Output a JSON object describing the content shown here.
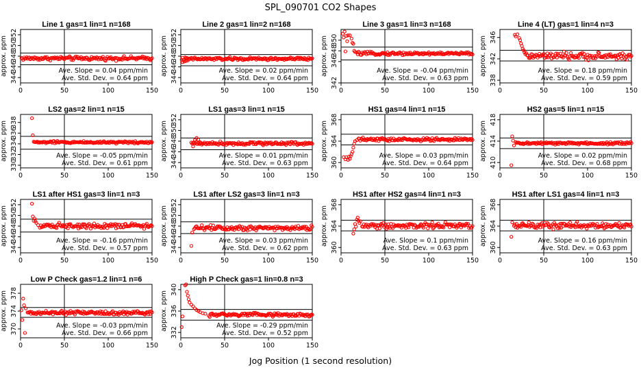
{
  "figure": {
    "title": "SPL_090701  CO2 Shapes",
    "xlabel": "Jog Position (1 second resolution)"
  },
  "chart_data": [
    {
      "type": "scatter",
      "title": "Line 1 gas=1 lin=1 n=168",
      "ylabel": "approx. ppm",
      "xlim": [
        0,
        150
      ],
      "ylim": [
        343,
        353
      ],
      "yticks": [
        344,
        346,
        348,
        350,
        352
      ],
      "xticks": [
        0,
        50,
        100,
        150
      ],
      "hlines": [
        348.6,
        346.4
      ],
      "vline": 50,
      "x_start": 1,
      "base": 347.6,
      "noise": 0.25,
      "init": [],
      "slope_text": "Ave. Slope =  0.04  ppm/min",
      "std_text": "Ave. Std. Dev. =  0.64  ppm"
    },
    {
      "type": "scatter",
      "title": "Line 2 gas=1 lin=2 n=168",
      "ylabel": "approx. ppm",
      "xlim": [
        0,
        150
      ],
      "ylim": [
        343,
        353
      ],
      "yticks": [
        344,
        346,
        348,
        350,
        352
      ],
      "xticks": [
        0,
        50,
        100,
        150
      ],
      "hlines": [
        348.3,
        346.2
      ],
      "vline": 50,
      "x_start": 1,
      "base": 347.5,
      "noise": 0.2,
      "init": [
        [
          2,
          346.9
        ],
        [
          4,
          347.0
        ],
        [
          6,
          347.1
        ],
        [
          8,
          347.2
        ]
      ],
      "slope_text": "Ave. Slope =  0.02  ppm/min",
      "std_text": "Ave. Std. Dev. =  0.64  ppm"
    },
    {
      "type": "scatter",
      "title": "Line 3 gas=1 lin=3 n=168",
      "ylabel": "approx. ppm",
      "xlim": [
        0,
        150
      ],
      "ylim": [
        342,
        352
      ],
      "yticks": [
        342,
        346,
        348,
        350
      ],
      "xticks": [
        0,
        50,
        100,
        150
      ],
      "hlines": [
        348.7,
        346.3
      ],
      "vline": 50,
      "x_start": 18,
      "base": 347.5,
      "noise": 0.2,
      "init": [
        [
          2,
          351.2
        ],
        [
          3,
          350.5
        ],
        [
          4,
          351.6
        ],
        [
          6,
          350.8
        ],
        [
          7,
          349.8
        ],
        [
          8,
          350.9
        ],
        [
          10,
          350.9
        ],
        [
          12,
          350.3
        ],
        [
          13,
          349.5
        ],
        [
          14,
          349.3
        ],
        [
          5,
          347.9
        ],
        [
          15,
          348.0
        ],
        [
          16,
          347.8
        ]
      ],
      "slope_text": "Ave. Slope =  -0.04  ppm/min",
      "std_text": "Ave. Std. Dev. =  0.63  ppm"
    },
    {
      "type": "scatter",
      "title": "Line 4 (LT) gas=1 lin=4 n=3",
      "ylabel": "approx. ppm",
      "xlim": [
        0,
        150
      ],
      "ylim": [
        337.5,
        347.5
      ],
      "yticks": [
        338,
        342,
        346
      ],
      "xticks": [
        0,
        50,
        100,
        150
      ],
      "hlines": [
        343.6,
        341.6
      ],
      "vline": 50,
      "x_start": 30,
      "base": 342.5,
      "noise": 0.45,
      "init": [
        [
          17,
          346.5
        ],
        [
          18,
          346.2
        ],
        [
          20,
          346.6
        ],
        [
          22,
          345.9
        ],
        [
          23,
          345.5
        ],
        [
          24,
          344.9
        ],
        [
          25,
          344.4
        ],
        [
          26,
          343.9
        ],
        [
          27,
          343.6
        ],
        [
          28,
          343.2
        ],
        [
          29,
          342.9
        ]
      ],
      "slope_text": "Ave. Slope =  0.18  ppm/min",
      "std_text": "Ave. Std. Dev. =  0.59  ppm"
    },
    {
      "type": "scatter",
      "title": "LS2 gas=2 lin=1 n=15",
      "ylabel": "approx. ppm",
      "xlim": [
        0,
        150
      ],
      "ylim": [
        329.5,
        339.5
      ],
      "yticks": [
        330,
        332,
        334,
        336,
        338
      ],
      "xticks": [
        0,
        50,
        100,
        150
      ],
      "hlines": [
        335.4,
        333.0
      ],
      "vline": 50,
      "x_start": 16,
      "base": 334.3,
      "noise": 0.15,
      "init": [
        [
          13,
          338.8
        ],
        [
          14,
          335.6
        ],
        [
          15,
          334.4
        ]
      ],
      "slope_text": "Ave. Slope =  -0.05  ppm/min",
      "std_text": "Ave. Std. Dev. =  0.61  ppm"
    },
    {
      "type": "scatter",
      "title": "LS1 gas=3 lin=1 n=15",
      "ylabel": "approx. ppm",
      "xlim": [
        0,
        150
      ],
      "ylim": [
        343,
        353
      ],
      "yticks": [
        344,
        346,
        348,
        350,
        352
      ],
      "xticks": [
        0,
        50,
        100,
        150
      ],
      "hlines": [
        348.6,
        346.4
      ],
      "vline": 50,
      "x_start": 12,
      "base": 347.6,
      "noise": 0.22,
      "init": [
        [
          14,
          347.0
        ],
        [
          16,
          348.2
        ],
        [
          18,
          348.6
        ],
        [
          20,
          348.3
        ],
        [
          22,
          347.8
        ]
      ],
      "slope_text": "Ave. Slope =  0.01  ppm/min",
      "std_text": "Ave. Std. Dev. =  0.63  ppm"
    },
    {
      "type": "scatter",
      "title": "HS1 gas=4 lin=1 n=15",
      "ylabel": "approx. ppm",
      "xlim": [
        0,
        150
      ],
      "ylim": [
        359,
        369
      ],
      "yticks": [
        360,
        364,
        368
      ],
      "xticks": [
        0,
        50,
        100,
        150
      ],
      "hlines": [
        365.3,
        363.3
      ],
      "vline": 50,
      "x_start": 20,
      "base": 364.3,
      "noise": 0.22,
      "init": [
        [
          3,
          361.0
        ],
        [
          5,
          360.6
        ],
        [
          6,
          361.0
        ],
        [
          8,
          360.5
        ],
        [
          9,
          361.1
        ],
        [
          10,
          360.7
        ],
        [
          11,
          361.2
        ],
        [
          12,
          361.6
        ],
        [
          13,
          362.0
        ],
        [
          14,
          362.8
        ],
        [
          15,
          363.5
        ],
        [
          16,
          364.0
        ],
        [
          18,
          364.2
        ]
      ],
      "slope_text": "Ave. Slope =  0.03  ppm/min",
      "std_text": "Ave. Std. Dev. =  0.64  ppm"
    },
    {
      "type": "scatter",
      "title": "HS2 gas=5 lin=1 n=15",
      "ylabel": "approx. ppm",
      "xlim": [
        0,
        150
      ],
      "ylim": [
        409,
        419
      ],
      "yticks": [
        410,
        414,
        418
      ],
      "xticks": [
        0,
        50,
        100,
        150
      ],
      "hlines": [
        414.6,
        412.6
      ],
      "vline": 50,
      "x_start": 18,
      "base": 413.6,
      "noise": 0.18,
      "init": [
        [
          13,
          409.5
        ],
        [
          14,
          414.9
        ],
        [
          15,
          414.1
        ],
        [
          16,
          413.2
        ]
      ],
      "slope_text": "Ave. Slope =  0.02  ppm/min",
      "std_text": "Ave. Std. Dev. =  0.68  ppm"
    },
    {
      "type": "scatter",
      "title": "LS1 after HS1 gas=3 lin=1 n=3",
      "ylabel": "approx. ppm",
      "xlim": [
        0,
        150
      ],
      "ylim": [
        343,
        353
      ],
      "yticks": [
        344,
        346,
        348,
        350,
        352
      ],
      "xticks": [
        0,
        50,
        100,
        150
      ],
      "hlines": [
        349.3,
        346.9
      ],
      "vline": 50,
      "x_start": 22,
      "base": 348.1,
      "noise": 0.35,
      "init": [
        [
          13,
          352.2
        ],
        [
          14,
          349.8
        ],
        [
          15,
          349.0
        ],
        [
          16,
          349.4
        ],
        [
          17,
          348.9
        ],
        [
          18,
          348.6
        ],
        [
          20,
          348.2
        ]
      ],
      "slope_text": "Ave. Slope =  -0.16  ppm/min",
      "std_text": "Ave. Std. Dev. =  0.57  ppm"
    },
    {
      "type": "scatter",
      "title": "LS1 after LS2 gas=3 lin=1 n=3",
      "ylabel": "approx. ppm",
      "xlim": [
        0,
        150
      ],
      "ylim": [
        343,
        353
      ],
      "yticks": [
        344,
        346,
        348,
        350,
        352
      ],
      "xticks": [
        0,
        50,
        100,
        150
      ],
      "hlines": [
        348.8,
        346.6
      ],
      "vline": 50,
      "x_start": 15,
      "base": 347.7,
      "noise": 0.35,
      "init": [
        [
          12,
          344.3
        ],
        [
          13,
          346.8
        ]
      ],
      "slope_text": "Ave. Slope =  0.03  ppm/min",
      "std_text": "Ave. Std. Dev. =  0.62  ppm"
    },
    {
      "type": "scatter",
      "title": "HS1 after HS2 gas=4 lin=1 n=3",
      "ylabel": "approx. ppm",
      "xlim": [
        0,
        150
      ],
      "ylim": [
        359,
        369
      ],
      "yticks": [
        360,
        364,
        368
      ],
      "xticks": [
        0,
        50,
        100,
        150
      ],
      "hlines": [
        365.1,
        363.1
      ],
      "vline": 50,
      "x_start": 24,
      "base": 364.1,
      "noise": 0.4,
      "init": [
        [
          14,
          362.6
        ],
        [
          15,
          363.4
        ],
        [
          16,
          364.4
        ],
        [
          17,
          363.9
        ],
        [
          18,
          365.2
        ],
        [
          19,
          365.6
        ],
        [
          20,
          365.0
        ],
        [
          21,
          364.6
        ],
        [
          22,
          364.9
        ]
      ],
      "slope_text": "Ave. Slope =  0.1  ppm/min",
      "std_text": "Ave. Std. Dev. =  0.63  ppm"
    },
    {
      "type": "scatter",
      "title": "HS1 after LS1 gas=4 lin=1 n=3",
      "ylabel": "approx. ppm",
      "xlim": [
        0,
        150
      ],
      "ylim": [
        359,
        369
      ],
      "yticks": [
        360,
        364,
        368
      ],
      "xticks": [
        0,
        50,
        100,
        150
      ],
      "hlines": [
        365.1,
        363.1
      ],
      "vline": 50,
      "x_start": 16,
      "base": 364.1,
      "noise": 0.4,
      "init": [
        [
          13,
          362.0
        ],
        [
          14,
          364.7
        ]
      ],
      "slope_text": "Ave. Slope =  0.16  ppm/min",
      "std_text": "Ave. Std. Dev. =  0.63  ppm"
    },
    {
      "type": "scatter",
      "title": "Low P Check gas=1.2 lin=1 n=6",
      "ylabel": "approx. ppm",
      "xlim": [
        0,
        150
      ],
      "ylim": [
        368,
        380
      ],
      "yticks": [
        370,
        374,
        378
      ],
      "xticks": [
        0,
        50,
        100,
        150
      ],
      "hlines": [
        374.8,
        372.6
      ],
      "vline": 50,
      "x_start": 8,
      "base": 373.6,
      "noise": 0.3,
      "init": [
        [
          1,
          374.2
        ],
        [
          2,
          372.0
        ],
        [
          3,
          376.8
        ],
        [
          4,
          375.3
        ],
        [
          5,
          369.1
        ],
        [
          6,
          374.6
        ]
      ],
      "slope_text": "Ave. Slope =  -0.03  ppm/min",
      "std_text": "Ave. Std. Dev. =  0.66  ppm"
    },
    {
      "type": "scatter",
      "title": "High P Check gas=1 lin=0.8 n=3",
      "ylabel": "approx. ppm",
      "xlim": [
        0,
        150
      ],
      "ylim": [
        331,
        341
      ],
      "yticks": [
        332,
        336,
        340
      ],
      "xticks": [
        0,
        50,
        100,
        150
      ],
      "hlines": [
        336.3,
        334.3
      ],
      "vline": 50,
      "x_start": 32,
      "base": 335.3,
      "noise": 0.25,
      "init": [
        [
          1,
          333.0
        ],
        [
          2,
          335.0
        ],
        [
          4,
          341.2
        ],
        [
          5,
          340.8
        ],
        [
          6,
          341.0
        ],
        [
          7,
          339.6
        ],
        [
          8,
          338.9
        ],
        [
          9,
          338.2
        ],
        [
          10,
          337.6
        ],
        [
          12,
          337.2
        ],
        [
          14,
          336.9
        ],
        [
          16,
          336.5
        ],
        [
          18,
          336.2
        ],
        [
          20,
          336.0
        ],
        [
          22,
          335.8
        ],
        [
          25,
          335.6
        ],
        [
          28,
          335.5
        ]
      ],
      "slope_text": "Ave. Slope =  -0.29  ppm/min",
      "std_text": "Ave. Std. Dev. =  0.52  ppm"
    }
  ],
  "colors": {
    "points": "#ff0000",
    "lines": "#000000"
  }
}
